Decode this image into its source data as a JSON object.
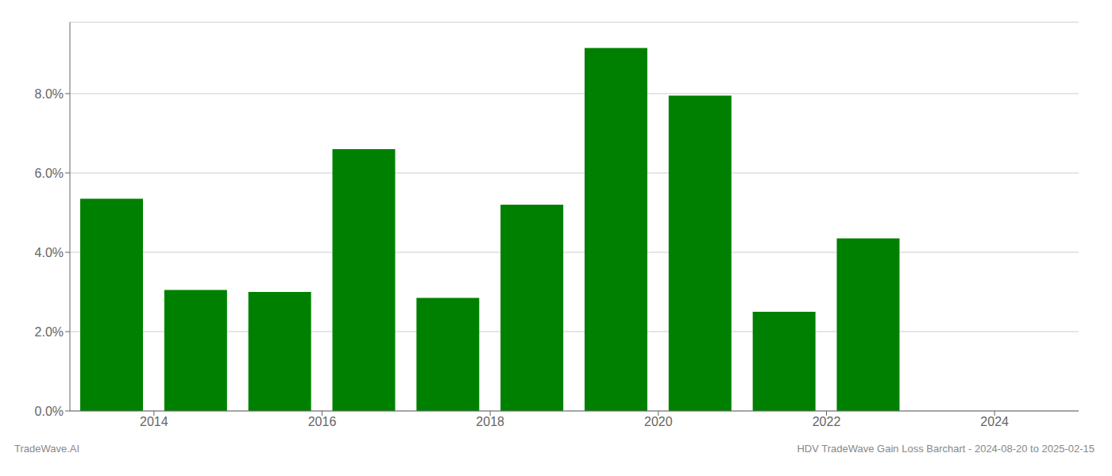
{
  "chart_data": {
    "type": "bar",
    "x": [
      2013.5,
      2014.5,
      2015.5,
      2016.5,
      2017.5,
      2018.5,
      2019.5,
      2020.5,
      2021.5,
      2022.5,
      2023.5
    ],
    "values": [
      0.0535,
      0.0305,
      0.03,
      0.066,
      0.0285,
      0.052,
      0.0915,
      0.0795,
      0.025,
      0.0435,
      0.0
    ],
    "color": "#008000",
    "xlim": [
      2013.0,
      2025.0
    ],
    "xticks": [
      2014,
      2016,
      2018,
      2020,
      2022,
      2024
    ],
    "ylim": [
      0,
      0.098
    ],
    "yticks": [
      {
        "value": 0.0,
        "label": "0.0%"
      },
      {
        "value": 0.02,
        "label": "2.0%"
      },
      {
        "value": 0.04,
        "label": "4.0%"
      },
      {
        "value": 0.06,
        "label": "6.0%"
      },
      {
        "value": 0.08,
        "label": "8.0%"
      }
    ],
    "grid": true,
    "annotations": [
      "TradeWave.AI",
      "HDV TradeWave Gain Loss Barchart - 2024-08-20 to 2025-02-15"
    ]
  }
}
